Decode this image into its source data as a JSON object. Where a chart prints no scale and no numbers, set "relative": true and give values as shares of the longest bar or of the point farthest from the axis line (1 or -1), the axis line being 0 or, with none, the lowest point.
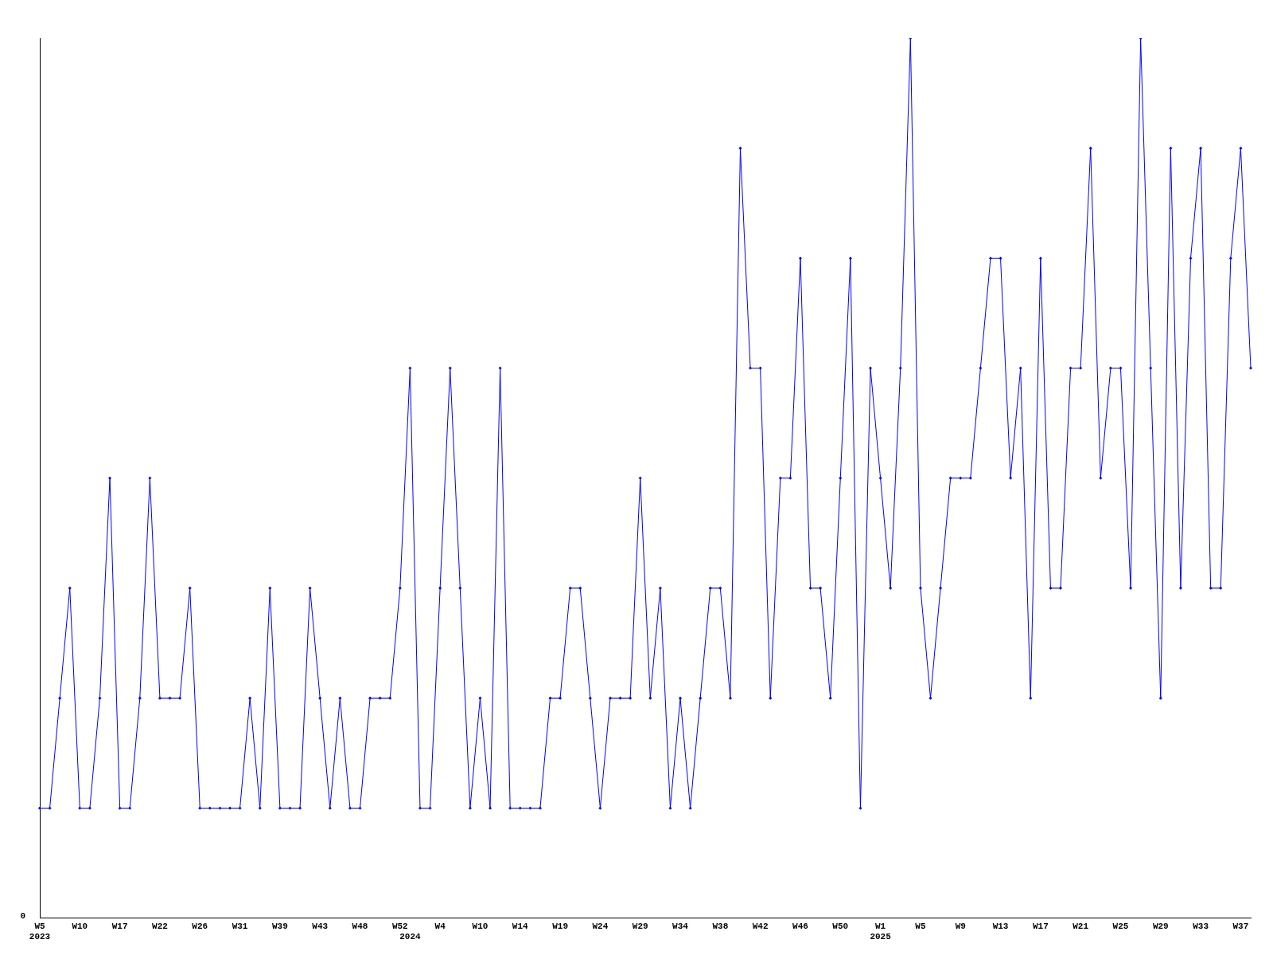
{
  "chart_data": {
    "type": "line",
    "relative": true,
    "grid": false,
    "legend": false,
    "marker": "diamond",
    "line_style": "solid",
    "categories": [
      "W5\n2023",
      null,
      null,
      null,
      "W10",
      null,
      null,
      null,
      "W17",
      null,
      null,
      null,
      "W22",
      null,
      null,
      null,
      "W26",
      null,
      null,
      null,
      "W31",
      null,
      null,
      null,
      "W39",
      null,
      null,
      null,
      "W43",
      null,
      null,
      null,
      "W48",
      null,
      null,
      null,
      "W52",
      "\n2024",
      null,
      null,
      "W4",
      null,
      null,
      null,
      "W10",
      null,
      null,
      null,
      "W14",
      null,
      null,
      null,
      "W19",
      null,
      null,
      null,
      "W24",
      null,
      null,
      null,
      "W29",
      null,
      null,
      null,
      "W34",
      null,
      null,
      null,
      "W38",
      null,
      null,
      null,
      "W42",
      null,
      null,
      null,
      "W46",
      null,
      null,
      null,
      "W50",
      null,
      null,
      null,
      "W1\n2025",
      null,
      null,
      null,
      "W5",
      null,
      null,
      null,
      "W9",
      null,
      null,
      null,
      "W13",
      null,
      null,
      null,
      "W17",
      null,
      null,
      null,
      "W21",
      null,
      null,
      null,
      "W25",
      null,
      null,
      null,
      "W29",
      null,
      null,
      null,
      "W33",
      null,
      null,
      null,
      "W37",
      null
    ],
    "series": [
      {
        "color": "#0000ff",
        "values": [
          0.125,
          0.125,
          0.25,
          0.375,
          0.125,
          0.125,
          0.25,
          0.5,
          0.125,
          0.125,
          0.25,
          0.5,
          0.25,
          0.25,
          0.25,
          0.375,
          0.125,
          0.125,
          0.125,
          0.125,
          0.125,
          0.25,
          0.125,
          0.375,
          0.125,
          0.125,
          0.125,
          0.375,
          0.25,
          0.125,
          0.25,
          0.125,
          0.125,
          0.25,
          0.25,
          0.25,
          0.375,
          0.625,
          0.125,
          0.125,
          0.375,
          0.625,
          0.375,
          0.125,
          0.25,
          0.125,
          0.625,
          0.125,
          0.125,
          0.125,
          0.125,
          0.25,
          0.25,
          0.375,
          0.375,
          0.25,
          0.125,
          0.25,
          0.25,
          0.25,
          0.5,
          0.25,
          0.375,
          0.125,
          0.25,
          0.125,
          0.25,
          0.375,
          0.375,
          0.25,
          0.875,
          0.625,
          0.625,
          0.25,
          0.5,
          0.5,
          0.75,
          0.375,
          0.375,
          0.25,
          0.5,
          0.75,
          0.125,
          0.625,
          0.5,
          0.375,
          0.625,
          1,
          0.375,
          0.25,
          0.375,
          0.5,
          0.5,
          0.5,
          0.625,
          0.75,
          0.75,
          0.5,
          0.625,
          0.25,
          0.75,
          0.375,
          0.375,
          0.625,
          0.625,
          0.875,
          0.5,
          0.625,
          0.625,
          0.375,
          1,
          0.625,
          0.25,
          0.875,
          0.375,
          0.75,
          0.875,
          0.375,
          0.375,
          0.75,
          0.875,
          0.625
        ]
      }
    ],
    "annotations": [
      "0"
    ]
  }
}
